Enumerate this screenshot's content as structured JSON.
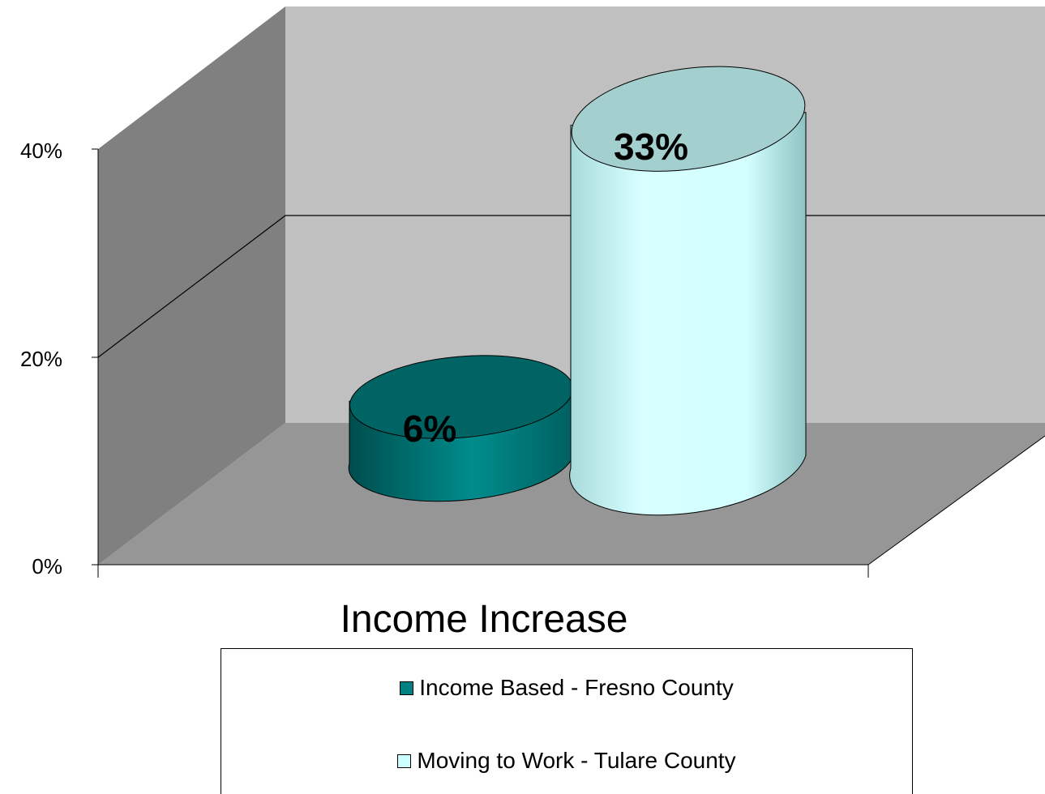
{
  "chart_data": {
    "type": "bar",
    "style": "3d-cylinder",
    "categories": [
      "Income Increase"
    ],
    "xlabel": "Income Increase",
    "ylabel": "",
    "ylim": [
      0,
      40
    ],
    "yticks": [
      "0%",
      "20%",
      "40%"
    ],
    "yticks_values": [
      0,
      20,
      40
    ],
    "grid": true,
    "legend_position": "bottom",
    "series": [
      {
        "name": "Income Based - Fresno County",
        "values": [
          6
        ],
        "label": "6%",
        "color": "#008080"
      },
      {
        "name": "Moving to Work - Tulare County",
        "values": [
          33
        ],
        "label": "33%",
        "color": "#CCFFFF"
      }
    ]
  },
  "colors": {
    "back_wall": "#C0C0C0",
    "side_wall": "#808080",
    "floor": "#969696"
  }
}
